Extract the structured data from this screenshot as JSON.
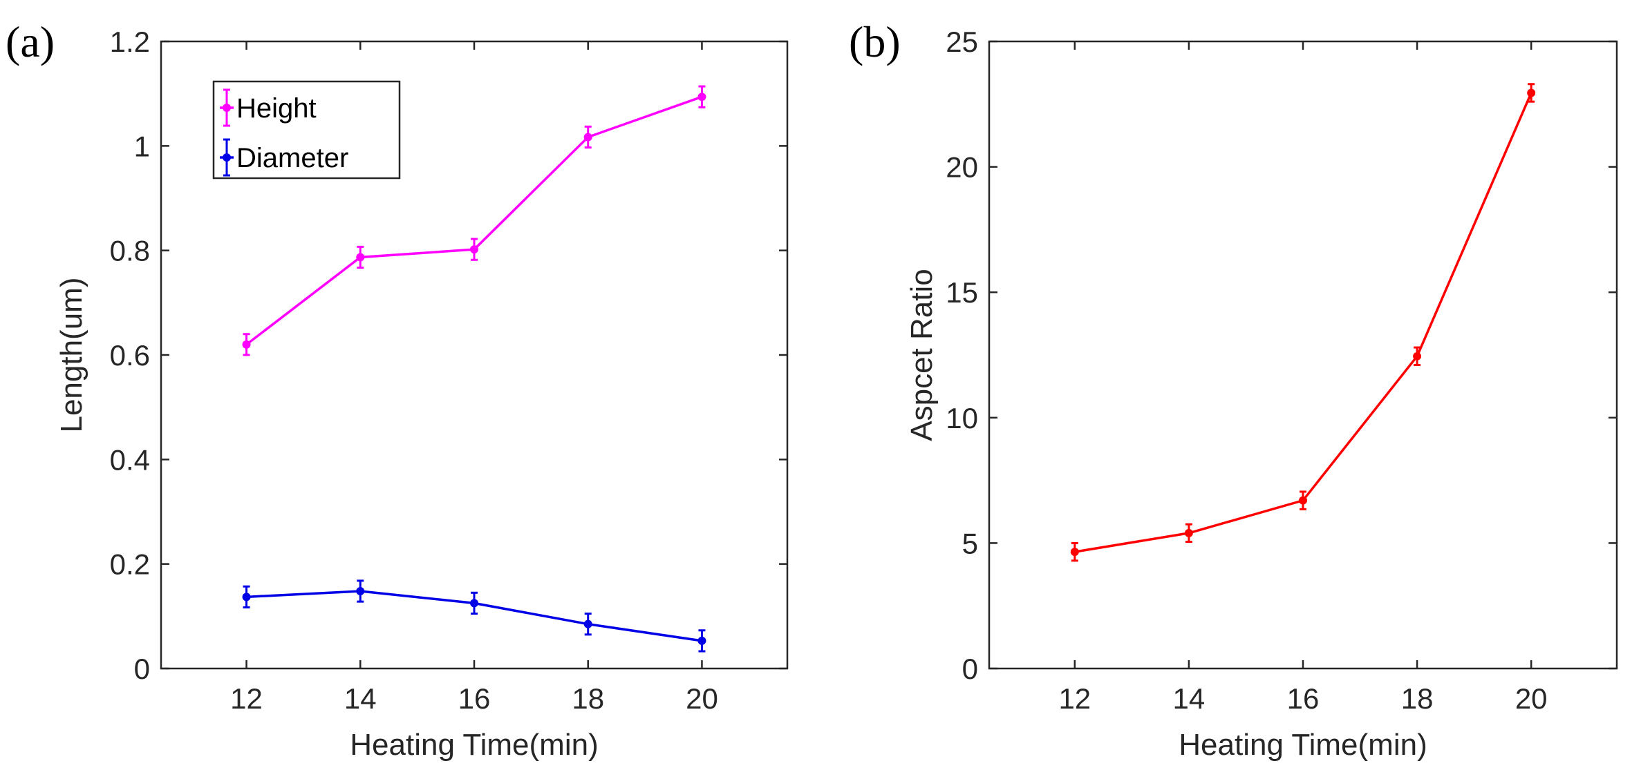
{
  "chart_data": [
    {
      "panel_label": "(a)",
      "type": "line",
      "title": "",
      "xlabel": "Heating Time(min)",
      "ylabel": "Length(um)",
      "x": [
        12,
        14,
        16,
        18,
        20
      ],
      "xlim": [
        10.5,
        21.5
      ],
      "ylim": [
        0,
        1.2
      ],
      "xticks": [
        12,
        14,
        16,
        18,
        20
      ],
      "xtick_labels": [
        "12",
        "14",
        "16",
        "18",
        "20"
      ],
      "yticks": [
        0,
        0.2,
        0.4,
        0.6,
        0.8,
        1,
        1.2
      ],
      "ytick_labels": [
        "0",
        "0.2",
        "0.4",
        "0.6",
        "0.8",
        "1",
        "1.2"
      ],
      "grid": false,
      "legend_position": "top-left",
      "series": [
        {
          "name": "Height",
          "color": "#ff00ff",
          "values": [
            0.62,
            0.787,
            0.802,
            1.017,
            1.094
          ],
          "errors": [
            0.02,
            0.02,
            0.02,
            0.02,
            0.02
          ]
        },
        {
          "name": "Diameter",
          "color": "#0000e6",
          "values": [
            0.137,
            0.148,
            0.125,
            0.085,
            0.053
          ],
          "errors": [
            0.02,
            0.02,
            0.02,
            0.02,
            0.02
          ]
        }
      ]
    },
    {
      "panel_label": "(b)",
      "type": "line",
      "title": "",
      "xlabel": "Heating Time(min)",
      "ylabel": "Aspcet Ratio",
      "x": [
        12,
        14,
        16,
        18,
        20
      ],
      "xlim": [
        10.5,
        21.5
      ],
      "ylim": [
        0,
        25
      ],
      "xticks": [
        12,
        14,
        16,
        18,
        20
      ],
      "xtick_labels": [
        "12",
        "14",
        "16",
        "18",
        "20"
      ],
      "yticks": [
        0,
        5,
        10,
        15,
        20,
        25
      ],
      "ytick_labels": [
        "0",
        "5",
        "10",
        "15",
        "20",
        "25"
      ],
      "grid": false,
      "series": [
        {
          "name": "Aspect Ratio",
          "color": "#ff0000",
          "values": [
            4.65,
            5.4,
            6.7,
            12.45,
            22.95
          ],
          "errors": [
            0.35,
            0.35,
            0.35,
            0.35,
            0.35
          ]
        }
      ]
    }
  ]
}
